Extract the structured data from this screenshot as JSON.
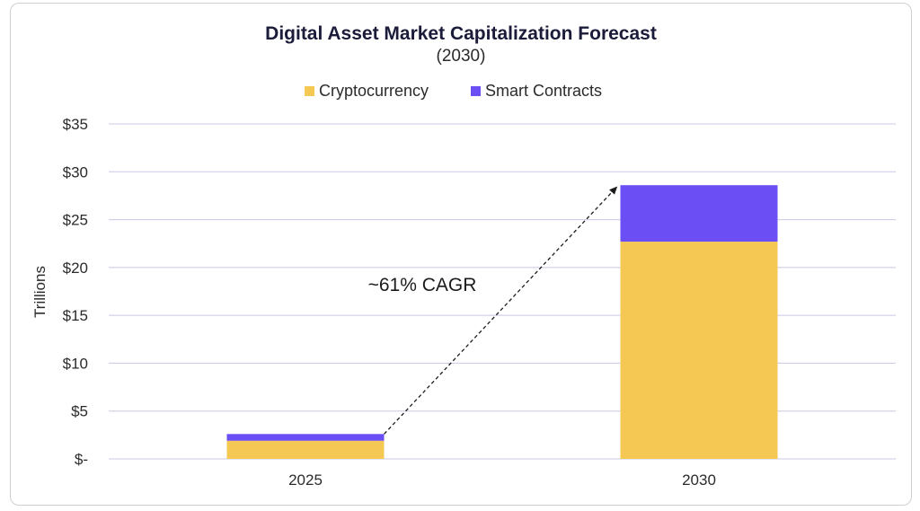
{
  "chart_data": {
    "type": "bar",
    "stacked": true,
    "title": "Digital Asset Market Capitalization Forecast",
    "subtitle": "(2030)",
    "ylabel": "Trillions",
    "xlabel": "",
    "categories": [
      "2025",
      "2030"
    ],
    "series": [
      {
        "name": "Cryptocurrency",
        "color": "#f5c753",
        "values": [
          1.9,
          22.7
        ]
      },
      {
        "name": "Smart Contracts",
        "color": "#6c4ef5",
        "values": [
          0.7,
          5.9
        ]
      }
    ],
    "ylim": [
      0,
      35
    ],
    "yticks": [
      0,
      5,
      10,
      15,
      20,
      25,
      30,
      35
    ],
    "ytick_labels": [
      "$-",
      "$5",
      "$10",
      "$15",
      "$20",
      "$25",
      "$30",
      "$35"
    ],
    "legend_position": "top-center",
    "grid": true,
    "annotation": {
      "text": "~61% CAGR",
      "arrow_from_category": "2025",
      "arrow_to_category": "2030"
    }
  }
}
